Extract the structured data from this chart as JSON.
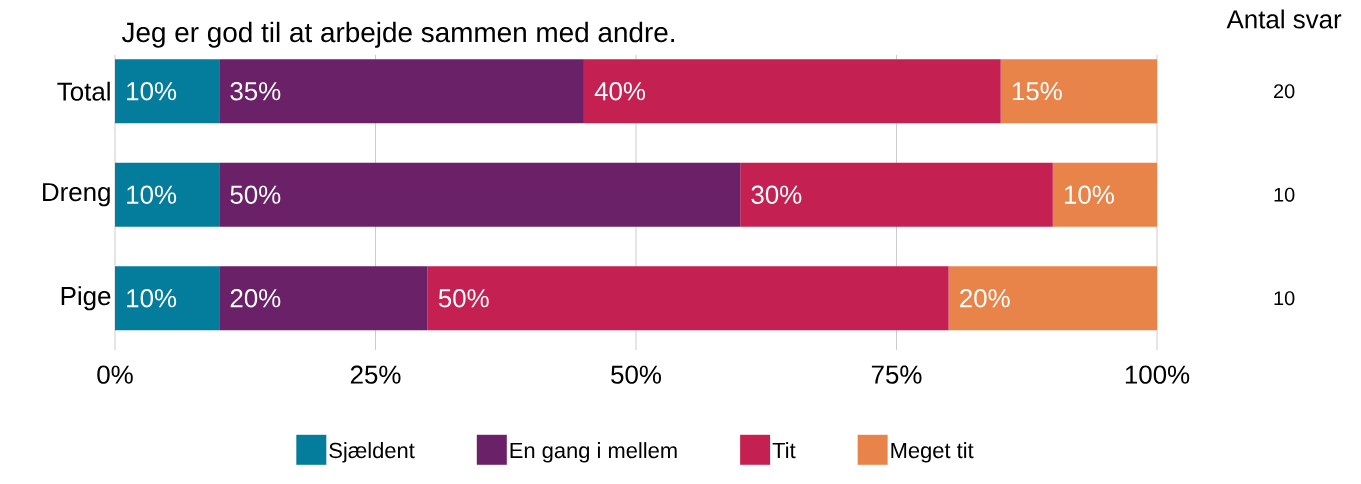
{
  "chart_data": {
    "type": "bar",
    "orientation": "horizontal",
    "stacked": true,
    "title": "Jeg er god til at arbejde sammen med andre.",
    "categories": [
      "Total",
      "Dreng",
      "Pige"
    ],
    "series": [
      {
        "name": "Sjældent",
        "color": "#047c9c",
        "values": [
          10,
          10,
          10
        ],
        "value_labels": [
          "10%",
          "10%",
          "10%"
        ]
      },
      {
        "name": "En gang i mellem",
        "color": "#6a2167",
        "values": [
          35,
          50,
          20
        ],
        "value_labels": [
          "35%",
          "50%",
          "20%"
        ]
      },
      {
        "name": "Tit",
        "color": "#c42152",
        "values": [
          40,
          30,
          50
        ],
        "value_labels": [
          "40%",
          "30%",
          "50%"
        ]
      },
      {
        "name": "Meget tit",
        "color": "#e8844a",
        "values": [
          15,
          10,
          20
        ],
        "value_labels": [
          "15%",
          "10%",
          "20%"
        ]
      }
    ],
    "xlim": [
      0,
      100
    ],
    "xticks": [
      {
        "value": 0,
        "label": "0%"
      },
      {
        "value": 25,
        "label": "25%"
      },
      {
        "value": 50,
        "label": "50%"
      },
      {
        "value": 75,
        "label": "75%"
      },
      {
        "value": 100,
        "label": "100%"
      }
    ],
    "grid": "x",
    "legend": "bottom",
    "annotations": [
      "Antal svar",
      "20",
      "10",
      "10"
    ]
  }
}
